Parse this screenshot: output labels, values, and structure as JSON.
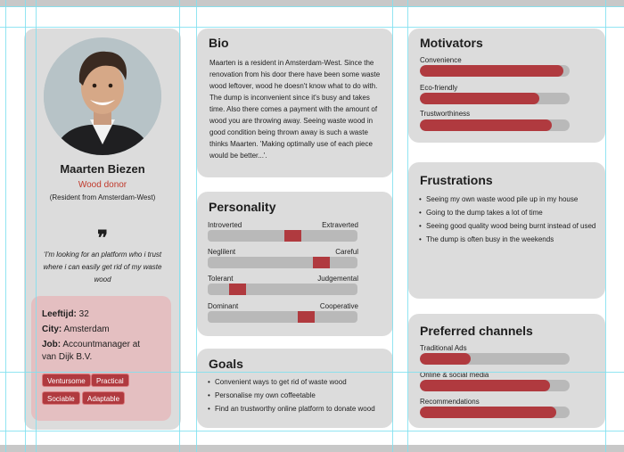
{
  "profile": {
    "name": "Maarten Biezen",
    "role": "Wood donor",
    "residence": "(Resident from Amsterdam-West)",
    "quote_mark": "❞",
    "quote": "‘I'm looking for an platform who i trust where i can easily get rid of my waste wood",
    "details": {
      "age_label": "Leeftijd:",
      "age_value": " 32",
      "city_label": "City:",
      "city_value": " Amsterdam",
      "job_label": "Job:",
      "job_value_line1": " Accountmanager at",
      "job_value_line2": "van Dijk B.V."
    },
    "tags": [
      "Ventursome",
      "Practical",
      "Sociable",
      "Adaptable"
    ]
  },
  "bio": {
    "title": "Bio",
    "text": "Maarten is a resident in Amsterdam-West. Since the renovation from his door there have been some waste wood leftover, wood he doesn't know what to do with. The dump is inconvenient since it's busy and takes time. Also there comes a payment with the amount of wood you are throwing away. Seeing waste wood in good condition being thrown away is such a waste thinks Maarten. 'Making optimally use of each piece would be better...'."
  },
  "personality": {
    "title": "Personality",
    "traits": [
      {
        "left": "Introverted",
        "right": "Extraverted",
        "value": 0.57
      },
      {
        "left": "Neglilent",
        "right": "Careful",
        "value": 0.76
      },
      {
        "left": "Tolerant",
        "right": "Judgemental",
        "value": 0.2
      },
      {
        "left": "Dominant",
        "right": "Cooperative",
        "value": 0.66
      }
    ]
  },
  "goals": {
    "title": "Goals",
    "items": [
      "Convenient ways to get rid of waste wood",
      "Personalise my own coffeetable",
      "Find an trustworthy online platform to donate wood"
    ]
  },
  "motivators": {
    "title": "Motivators",
    "items": [
      {
        "label": "Convenience",
        "value": 0.96
      },
      {
        "label": "Eco-friendly",
        "value": 0.8
      },
      {
        "label": "Trustworthiness",
        "value": 0.88
      }
    ]
  },
  "frustrations": {
    "title": "Frustrations",
    "items": [
      "Seeing my own waste wood pile up in my house",
      "Going to the dump takes a lot of time",
      "Seeing good quality wood being burnt instead of used",
      "The dump is often busy in the weekends"
    ]
  },
  "channels": {
    "title": "Preferred channels",
    "items": [
      {
        "label": "Traditional Ads",
        "value": 0.34
      },
      {
        "label": "Online & social media",
        "value": 0.87
      },
      {
        "label": "Recommendations",
        "value": 0.91
      }
    ]
  },
  "colors": {
    "accent": "#b03a3f",
    "card": "#dcdcdc",
    "details_bg": "#e4bfc1",
    "track": "#b9b9b9"
  }
}
